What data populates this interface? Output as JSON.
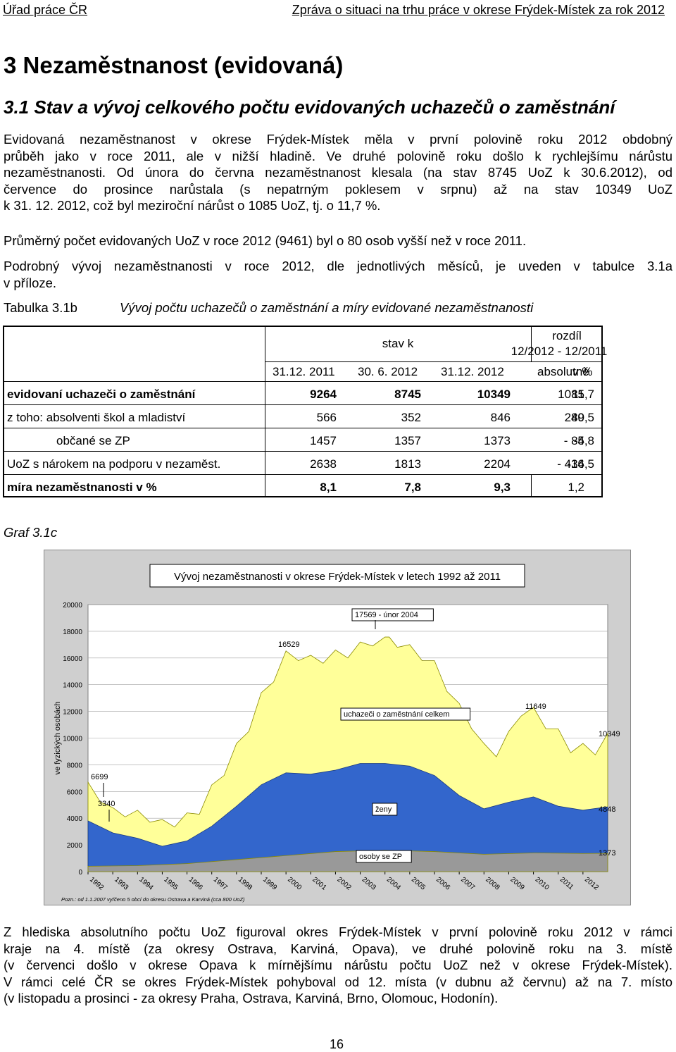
{
  "header": {
    "left": "Úřad práce ČR",
    "right": "Zpráva o situaci na trhu práce v okrese Frýdek-Místek za rok 2012"
  },
  "heading1": "3 Nezaměstnanost (evidovaná)",
  "heading2": "3.1 Stav a vývoj celkového počtu evidovaných uchazečů o zaměstnání",
  "paragraphs": {
    "p1_line1": "Evidovaná nezaměstnanost v okrese Frýdek-Místek měla v první polovině roku 2012 obdobný",
    "p1_line2": "průběh jako v roce 2011, ale v nižší hladině. Ve druhé polovině roku došlo k rychlejšímu nárůstu",
    "p1_line3": "nezaměstnanosti. Od února do června nezaměstnanost klesala (na stav 8745 UoZ k 30.6.2012), od",
    "p1_line4": "července do prosince narůstala (s nepatrným poklesem v srpnu) až na stav 10349 UoZ",
    "p1_line5": "k 31. 12. 2012, což byl meziroční nárůst o 1085 UoZ, tj. o 11,7 %.",
    "p2": "Průměrný počet evidovaných UoZ v roce 2012 (9461) byl o 80 osob vyšší než v roce 2011.",
    "p3_line1": "Podrobný vývoj nezaměstnanosti v roce 2012, dle jednotlivých měsíců, je uveden v tabulce 3.1a",
    "p3_line2": "v příloze."
  },
  "table_caption": {
    "label": "Tabulka 3.1b",
    "title": "Vývoj počtu uchazečů o zaměstnání a míry evidované nezaměstnanosti"
  },
  "table": {
    "header_stav": "stav k",
    "header_rozdil": "rozdíl",
    "header_rozdil_period": "12/2012 - 12/2011",
    "columns": [
      "31.12. 2011",
      "30. 6. 2012",
      "31.12. 2012",
      "absolutně",
      "v %"
    ],
    "rows": [
      {
        "label": "evidovaní uchazeči o zaměstnání",
        "values": [
          "9264",
          "8745",
          "10349",
          "1085",
          "11,7"
        ]
      },
      {
        "label": "z toho: absolventi škol a mladiství",
        "values": [
          "566",
          "352",
          "846",
          "280",
          "49,5"
        ]
      },
      {
        "label": "občané se ZP",
        "values": [
          "1457",
          "1357",
          "1373",
          "- 84",
          "-5,8"
        ]
      },
      {
        "label": "UoZ s nárokem na podporu v nezaměst.",
        "values": [
          "2638",
          "1813",
          "2204",
          "- 434",
          "-16,5"
        ]
      },
      {
        "label": "míra nezaměstnanosti v %",
        "values": [
          "8,1",
          "7,8",
          "9,3",
          "1,2",
          ""
        ]
      }
    ]
  },
  "graph_label": "Graf 3.1c",
  "chart_data": {
    "type": "area",
    "title": "Vývoj nezaměstnanosti v okrese Frýdek-Místek v letech 1992 až 2011",
    "ylabel": "ve fyzických osobách",
    "ylim": [
      0,
      20000
    ],
    "y_ticks": [
      "0",
      "2000",
      "4000",
      "6000",
      "8000",
      "10000",
      "12000",
      "14000",
      "16000",
      "18000",
      "20000"
    ],
    "x_ticks": [
      "1992",
      "1993",
      "1994",
      "1995",
      "1996",
      "1997",
      "1998",
      "1999",
      "2000",
      "2001",
      "2002",
      "2003",
      "2004",
      "2005",
      "2006",
      "2007",
      "2008",
      "2009",
      "2010",
      "2011",
      "2012"
    ],
    "series": [
      {
        "name": "uchazeči o zaměstnání celkem",
        "color": "#ffff99",
        "x": [
          1992.0,
          1992.5,
          1993.0,
          1993.5,
          1994.0,
          1994.5,
          1995.0,
          1995.5,
          1996.0,
          1996.5,
          1997.0,
          1997.5,
          1998.0,
          1998.5,
          1999.0,
          1999.5,
          2000.0,
          2000.5,
          2001.0,
          2001.5,
          2002.0,
          2002.5,
          2003.0,
          2003.5,
          2004.0,
          2004.17,
          2004.5,
          2005.0,
          2005.5,
          2006.0,
          2006.5,
          2007.0,
          2007.5,
          2008.0,
          2008.5,
          2009.0,
          2009.5,
          2010.0,
          2010.5,
          2011.0,
          2011.5,
          2012.0,
          2012.5,
          2013.0
        ],
        "values": [
          6699,
          5200,
          4800,
          4100,
          4600,
          3700,
          3900,
          3340,
          4400,
          4300,
          6500,
          7200,
          9600,
          10500,
          13400,
          14200,
          16529,
          15800,
          16200,
          15600,
          16600,
          16000,
          17200,
          16900,
          17569,
          17569,
          16800,
          17000,
          15800,
          15800,
          13500,
          12600,
          10700,
          9600,
          8600,
          10500,
          11649,
          12300,
          10700,
          10700,
          8900,
          9600,
          8745,
          10349
        ]
      },
      {
        "name": "ženy",
        "color": "#3366cc",
        "x": [
          1992.0,
          1993.0,
          1994.0,
          1995.0,
          1996.0,
          1997.0,
          1998.0,
          1999.0,
          2000.0,
          2001.0,
          2002.0,
          2003.0,
          2004.0,
          2005.0,
          2006.0,
          2007.0,
          2008.0,
          2009.0,
          2010.0,
          2011.0,
          2012.0,
          2013.0
        ],
        "values": [
          3800,
          2900,
          2500,
          1900,
          2300,
          3400,
          4900,
          6500,
          7400,
          7300,
          7600,
          8100,
          8100,
          7900,
          7200,
          5700,
          4700,
          5200,
          5600,
          4900,
          4600,
          4848
        ]
      },
      {
        "name": "osoby se ZP",
        "color": "#999999",
        "x": [
          1992.0,
          1994.0,
          1996.0,
          1998.0,
          2000.0,
          2002.0,
          2004.0,
          2006.0,
          2008.0,
          2010.0,
          2012.0,
          2013.0
        ],
        "values": [
          400,
          450,
          600,
          900,
          1200,
          1500,
          1600,
          1500,
          1300,
          1400,
          1357,
          1373
        ]
      }
    ],
    "annotations": [
      "17569 - únor 2004",
      "16529",
      "11649",
      "uchazeči o zaměstnání celkem",
      "10349",
      "6699",
      "3340",
      "ženy",
      "4848",
      "osoby se ZP",
      "1373"
    ],
    "note": "Pozn.: od 1.1.2007 vyřčeno 5 obcí do okresu Ostrava a Karviná (cca 800 UoZ)"
  },
  "closing_paragraph": {
    "line1": "Z hlediska absolutního počtu UoZ figuroval okres Frýdek-Místek v první polovině roku 2012 v rámci",
    "line2": "kraje na 4. místě (za okresy Ostrava, Karviná, Opava), ve druhé polovině roku na 3. místě",
    "line3": "(v červenci došlo v okrese Opava k mírnějšímu nárůstu počtu UoZ než v okrese Frýdek-Místek).",
    "line4": "V rámci celé ČR se okres Frýdek-Místek pohyboval od 12. místa (v dubnu až červnu) až na 7. místo",
    "line5": "(v listopadu a prosinci - za okresy Praha, Ostrava, Karviná, Brno, Olomouc, Hodonín)."
  },
  "page_number": "16"
}
